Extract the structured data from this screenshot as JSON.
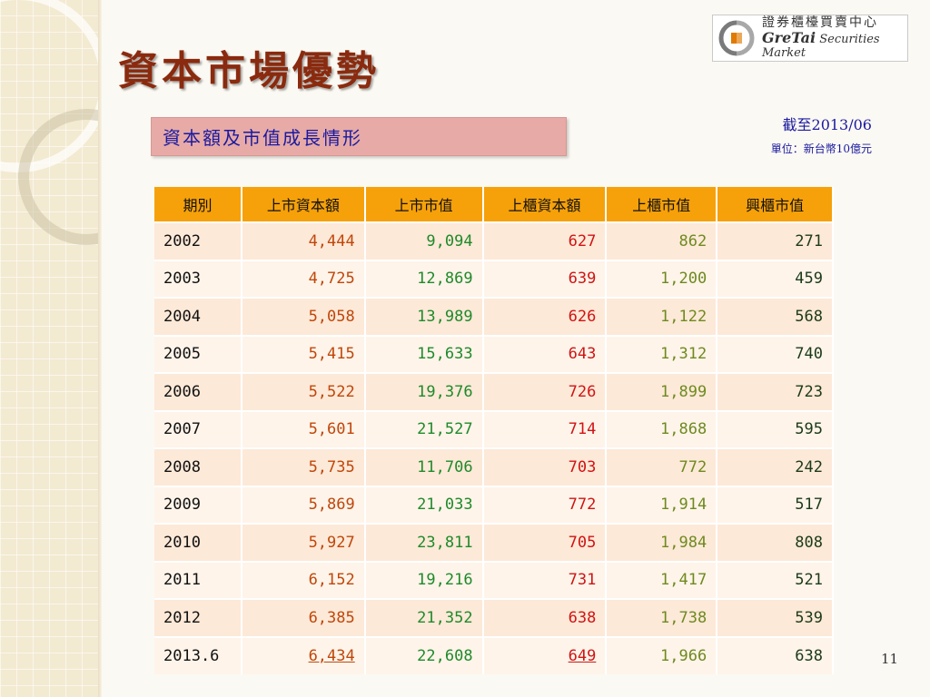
{
  "title": "資本市場優勢",
  "logo": {
    "name_cn": "證券櫃檯買賣中心",
    "name_en_main": "GreTai",
    "name_en_sub": "Securities Market"
  },
  "section_title": "資本額及市值成長情形",
  "as_of": "截至2013/06",
  "unit": "單位：新台幣10億元",
  "table": {
    "headers": [
      "期別",
      "上市資本額",
      "上市市值",
      "上櫃資本額",
      "上櫃市值",
      "興櫃市值"
    ],
    "rows": [
      [
        "2002",
        "4,444",
        "9,094",
        "627",
        "862",
        "271"
      ],
      [
        "2003",
        "4,725",
        "12,869",
        "639",
        "1,200",
        "459"
      ],
      [
        "2004",
        "5,058",
        "13,989",
        "626",
        "1,122",
        "568"
      ],
      [
        "2005",
        "5,415",
        "15,633",
        "643",
        "1,312",
        "740"
      ],
      [
        "2006",
        "5,522",
        "19,376",
        "726",
        "1,899",
        "723"
      ],
      [
        "2007",
        "5,601",
        "21,527",
        "714",
        "1,868",
        "595"
      ],
      [
        "2008",
        "5,735",
        "11,706",
        "703",
        "772",
        "242"
      ],
      [
        "2009",
        "5,869",
        "21,033",
        "772",
        "1,914",
        "517"
      ],
      [
        "2010",
        "5,927",
        "23,811",
        "705",
        "1,984",
        "808"
      ],
      [
        "2011",
        "6,152",
        "19,216",
        "731",
        "1,417",
        "521"
      ],
      [
        "2012",
        "6,385",
        "21,352",
        "638",
        "1,738",
        "539"
      ],
      [
        "2013.6",
        "6,434",
        "22,608",
        "649",
        "1,966",
        "638"
      ]
    ]
  },
  "page_number": "11",
  "colors": {
    "title": "#8a2a0e",
    "header_bg": "#f6a10a",
    "section_bg": "#e7aaa6",
    "accent_text": "#1a1aa0"
  }
}
